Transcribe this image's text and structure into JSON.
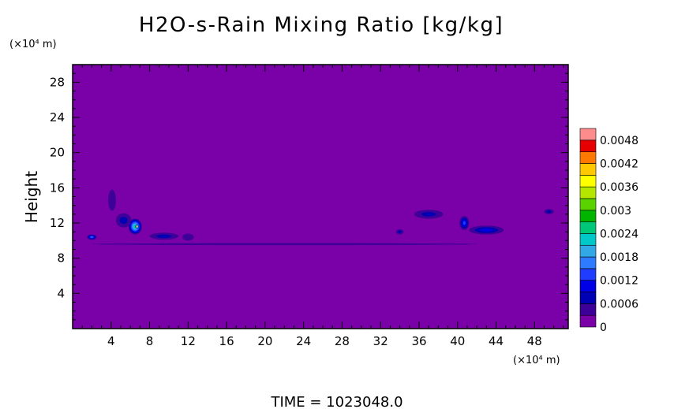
{
  "chart_data": {
    "type": "heatmap",
    "title": "H2O-s-Rain Mixing Ratio [kg/kg]",
    "xlabel": "",
    "ylabel": "Height",
    "x_unit": "(×10⁴ m)",
    "y_unit": "(×10⁴ m)",
    "xlim": [
      0,
      51.5
    ],
    "ylim": [
      0,
      30
    ],
    "x_ticks": [
      4,
      8,
      12,
      16,
      20,
      24,
      28,
      32,
      36,
      40,
      44,
      48
    ],
    "y_ticks": [
      4,
      8,
      12,
      16,
      20,
      24,
      28
    ],
    "colorbar": {
      "min": 0,
      "max": 0.0051,
      "labels": [
        "0",
        "0.0006",
        "0.0012",
        "0.0018",
        "0.0024",
        "0.003",
        "0.0036",
        "0.0042",
        "0.0048"
      ],
      "label_values": [
        0,
        0.0006,
        0.0012,
        0.0018,
        0.0024,
        0.003,
        0.0036,
        0.0042,
        0.0048
      ],
      "levels": 17
    },
    "background_value": 0,
    "features": [
      {
        "x": 2.0,
        "y": 10.4,
        "sx": 0.5,
        "sy": 0.3,
        "value": 0.0016
      },
      {
        "x": 6.5,
        "y": 11.6,
        "sx": 0.7,
        "sy": 0.9,
        "value": 0.0026
      },
      {
        "x": 6.7,
        "y": 11.6,
        "sx": 0.18,
        "sy": 0.25,
        "value": 0.0049
      },
      {
        "x": 5.3,
        "y": 12.3,
        "sx": 0.8,
        "sy": 0.8,
        "value": 0.0009
      },
      {
        "x": 4.1,
        "y": 14.6,
        "sx": 0.4,
        "sy": 1.2,
        "value": 0.0006
      },
      {
        "x": 9.5,
        "y": 10.5,
        "sx": 1.5,
        "sy": 0.4,
        "value": 0.0009
      },
      {
        "x": 12.0,
        "y": 10.4,
        "sx": 0.6,
        "sy": 0.4,
        "value": 0.0006
      },
      {
        "x": 37.0,
        "y": 13.0,
        "sx": 1.5,
        "sy": 0.5,
        "value": 0.0008
      },
      {
        "x": 40.7,
        "y": 12.0,
        "sx": 0.5,
        "sy": 0.8,
        "value": 0.0014
      },
      {
        "x": 43.0,
        "y": 11.2,
        "sx": 1.8,
        "sy": 0.5,
        "value": 0.001
      },
      {
        "x": 34.0,
        "y": 11.0,
        "sx": 0.4,
        "sy": 0.3,
        "value": 0.0007
      },
      {
        "x": 49.5,
        "y": 13.3,
        "sx": 0.5,
        "sy": 0.3,
        "value": 0.0007
      },
      {
        "x": 22.0,
        "y": 9.6,
        "sx": 20.0,
        "sy": 0.12,
        "value": 0.0004
      }
    ]
  },
  "footer": {
    "time_label": "TIME = 1023048.0"
  }
}
